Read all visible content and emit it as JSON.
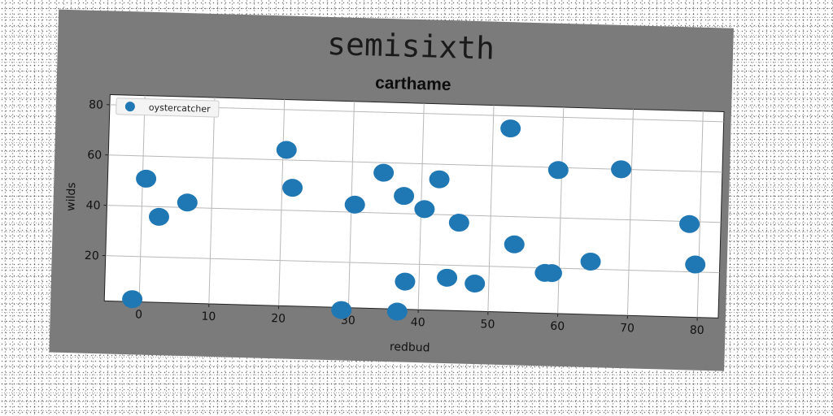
{
  "chart_data": {
    "type": "scatter",
    "suptitle": "semisixth",
    "title": "carthame",
    "xlabel": "redbud",
    "ylabel": "wilds",
    "xlim": [
      -5,
      83
    ],
    "ylim": [
      2,
      84
    ],
    "xticks": [
      0,
      10,
      20,
      30,
      40,
      50,
      60,
      70,
      80
    ],
    "yticks": [
      20,
      40,
      60,
      80
    ],
    "grid": true,
    "legend_position": "top-left",
    "series": [
      {
        "name": "oystercatcher",
        "color": "#1f77b4",
        "points": [
          {
            "x": -1,
            "y": 3
          },
          {
            "x": 0.5,
            "y": 51
          },
          {
            "x": 2.5,
            "y": 36
          },
          {
            "x": 6.5,
            "y": 42
          },
          {
            "x": 20.5,
            "y": 64
          },
          {
            "x": 21.5,
            "y": 49
          },
          {
            "x": 29,
            "y": 1
          },
          {
            "x": 30.5,
            "y": 43
          },
          {
            "x": 34.5,
            "y": 56
          },
          {
            "x": 37,
            "y": 1
          },
          {
            "x": 37.5,
            "y": 47
          },
          {
            "x": 38,
            "y": 13
          },
          {
            "x": 40.5,
            "y": 42
          },
          {
            "x": 42.5,
            "y": 54
          },
          {
            "x": 44,
            "y": 15
          },
          {
            "x": 45.5,
            "y": 37
          },
          {
            "x": 48,
            "y": 13
          },
          {
            "x": 52.5,
            "y": 75
          },
          {
            "x": 53.5,
            "y": 29
          },
          {
            "x": 58,
            "y": 18
          },
          {
            "x": 59,
            "y": 18
          },
          {
            "x": 59.5,
            "y": 59
          },
          {
            "x": 64.5,
            "y": 23
          },
          {
            "x": 68.5,
            "y": 60
          },
          {
            "x": 78.5,
            "y": 39
          },
          {
            "x": 79.5,
            "y": 23
          }
        ]
      }
    ]
  }
}
